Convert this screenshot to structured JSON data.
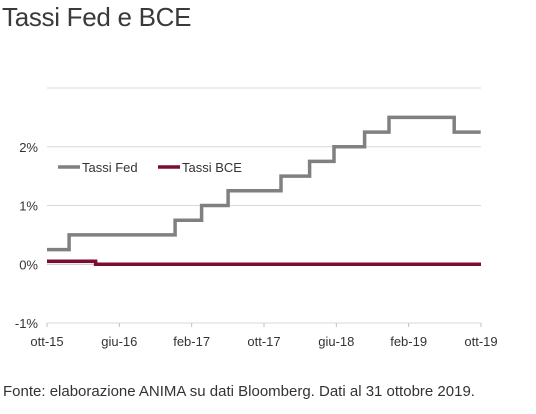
{
  "title": "Tassi Fed e BCE",
  "source": "Fonte: elaborazione ANIMA su dati Bloomberg. Dati al 31 ottobre 2019.",
  "colors": {
    "fed": "#808080",
    "bce": "#7b0c35",
    "grid": "#d9d9d9",
    "axis": "#bfbfbf",
    "text": "#333333"
  },
  "chart_data": {
    "type": "line",
    "step": true,
    "title": "Tassi Fed e BCE",
    "xlabel": "",
    "ylabel": "",
    "x_ticks": [
      "ott-15",
      "giu-16",
      "feb-17",
      "ott-17",
      "giu-18",
      "feb-19",
      "ott-19"
    ],
    "y_ticks": [
      "-1%",
      "0%",
      "1%",
      "2%"
    ],
    "ylim": [
      -1,
      3
    ],
    "xlim": [
      "2015-10-01",
      "2019-10-31"
    ],
    "grid": "horizontal",
    "legend": "top-left",
    "series": [
      {
        "name": "Tassi Fed",
        "color": "#808080",
        "points": [
          [
            "2015-10-01",
            0.25
          ],
          [
            "2015-12-16",
            0.5
          ],
          [
            "2016-12-14",
            0.75
          ],
          [
            "2017-03-15",
            1.0
          ],
          [
            "2017-06-14",
            1.25
          ],
          [
            "2017-12-13",
            1.5
          ],
          [
            "2018-03-21",
            1.75
          ],
          [
            "2018-06-13",
            2.0
          ],
          [
            "2018-09-26",
            2.25
          ],
          [
            "2018-12-19",
            2.5
          ],
          [
            "2019-07-31",
            2.25
          ],
          [
            "2019-10-30",
            2.25
          ]
        ]
      },
      {
        "name": "Tassi BCE",
        "color": "#7b0c35",
        "points": [
          [
            "2015-10-01",
            0.05
          ],
          [
            "2016-03-16",
            0.0
          ],
          [
            "2019-10-31",
            0.0
          ]
        ]
      }
    ]
  }
}
